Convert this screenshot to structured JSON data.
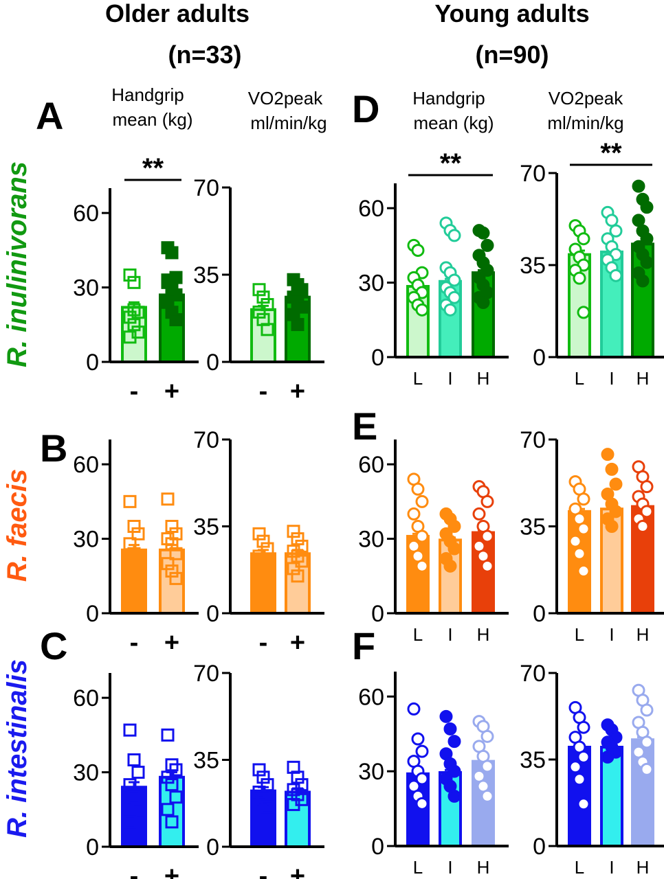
{
  "headers": {
    "older": {
      "line1": "Older adults",
      "line2": "(n=33)"
    },
    "young": {
      "line1": "Young adults",
      "line2": "(n=90)"
    }
  },
  "column_labels": {
    "handgrip": {
      "line1": "Handgrip",
      "line2": "mean (kg)"
    },
    "vo2": {
      "line1": "VO2peak",
      "line2": "ml/min/kg"
    }
  },
  "row_labels": [
    {
      "text": "R. inulinivorans",
      "color": "#119911"
    },
    {
      "text": "R. faecis",
      "color": "#ff5a10"
    },
    {
      "text": "R. intestinalis",
      "color": "#1a1aee"
    }
  ],
  "panel_letters": [
    "A",
    "B",
    "C",
    "D",
    "E",
    "F"
  ],
  "significance_label": "**",
  "chart_data": [
    {
      "id": "A-handgrip",
      "panel": "A",
      "type": "bar",
      "ylim": [
        0,
        70
      ],
      "yticks": [
        0,
        30,
        60
      ],
      "categories": [
        "-",
        "+"
      ],
      "values": [
        22,
        27
      ],
      "sem": [
        2,
        1.5
      ],
      "significant": true,
      "markers": [
        "open-square",
        "filled-square"
      ],
      "fills": [
        "#ccf7cc",
        "#00aa00"
      ],
      "strokes": [
        "#11bb11",
        "#006b00"
      ],
      "points": [
        [
          35,
          32,
          20,
          18,
          15,
          12,
          10,
          21
        ],
        [
          46,
          44,
          34,
          32,
          30,
          27,
          24,
          20,
          17,
          33
        ]
      ]
    },
    {
      "id": "A-vo2",
      "panel": "A",
      "type": "bar",
      "ylim": [
        0,
        70
      ],
      "yticks": [
        0,
        35,
        70
      ],
      "categories": [
        "-",
        "+"
      ],
      "values": [
        21,
        26
      ],
      "sem": [
        1.5,
        1.5
      ],
      "significant": false,
      "markers": [
        "open-square",
        "filled-square"
      ],
      "fills": [
        "#ccf7cc",
        "#00aa00"
      ],
      "strokes": [
        "#11bb11",
        "#006b00"
      ],
      "points": [
        [
          29,
          26,
          23,
          20,
          17,
          13
        ],
        [
          33,
          31,
          29,
          26,
          24,
          22,
          19,
          15
        ]
      ]
    },
    {
      "id": "B-handgrip",
      "panel": "B",
      "type": "bar",
      "ylim": [
        0,
        70
      ],
      "yticks": [
        0,
        30,
        60
      ],
      "categories": [
        "-",
        "+"
      ],
      "values": [
        25.5,
        25.5
      ],
      "sem": [
        2,
        2
      ],
      "significant": false,
      "markers": [
        "open-square",
        "open-square"
      ],
      "fills": [
        "#ff8c10",
        "#ffcc99"
      ],
      "strokes": [
        "#ff8c10",
        "#ff8c10"
      ],
      "points": [
        [
          45,
          35,
          32,
          28,
          24,
          20,
          15,
          10
        ],
        [
          46,
          35,
          32,
          30,
          28,
          24,
          20,
          17,
          14
        ]
      ]
    },
    {
      "id": "B-vo2",
      "panel": "B",
      "type": "bar",
      "ylim": [
        0,
        70
      ],
      "yticks": [
        0,
        35,
        70
      ],
      "categories": [
        "-",
        "+"
      ],
      "values": [
        24,
        24
      ],
      "sem": [
        1.5,
        1.5
      ],
      "significant": false,
      "markers": [
        "open-square",
        "open-square"
      ],
      "fills": [
        "#ff8c10",
        "#ffcc99"
      ],
      "strokes": [
        "#ff8c10",
        "#ff8c10"
      ],
      "points": [
        [
          32,
          29,
          26,
          23,
          20,
          17
        ],
        [
          33,
          30,
          27,
          25,
          23,
          21,
          18,
          15
        ]
      ]
    },
    {
      "id": "C-handgrip",
      "panel": "C",
      "type": "bar",
      "ylim": [
        0,
        70
      ],
      "yticks": [
        0,
        30,
        60
      ],
      "categories": [
        "-",
        "+"
      ],
      "values": [
        24,
        28
      ],
      "sem": [
        2,
        2
      ],
      "significant": false,
      "markers": [
        "open-square",
        "open-square"
      ],
      "fills": [
        "#1111ee",
        "#33eeee"
      ],
      "strokes": [
        "#1111ee",
        "#1111ee"
      ],
      "points": [
        [
          47,
          35,
          30,
          25,
          20,
          15,
          10
        ],
        [
          45,
          33,
          31,
          28,
          25,
          20,
          15,
          10
        ]
      ]
    },
    {
      "id": "C-vo2",
      "panel": "C",
      "type": "bar",
      "ylim": [
        0,
        70
      ],
      "yticks": [
        0,
        35,
        70
      ],
      "categories": [
        "-",
        "+"
      ],
      "values": [
        22.5,
        22
      ],
      "sem": [
        1.5,
        1.5
      ],
      "significant": false,
      "markers": [
        "open-square",
        "open-square"
      ],
      "fills": [
        "#1111ee",
        "#33eeee"
      ],
      "strokes": [
        "#1111ee",
        "#1111ee"
      ],
      "points": [
        [
          31,
          28,
          25,
          22,
          19,
          16
        ],
        [
          32,
          28,
          25,
          23,
          21,
          19,
          17
        ]
      ]
    },
    {
      "id": "D-handgrip",
      "panel": "D",
      "type": "bar",
      "ylim": [
        0,
        70
      ],
      "yticks": [
        0,
        30,
        60
      ],
      "categories": [
        "L",
        "I",
        "H"
      ],
      "values": [
        28.5,
        30.5,
        34
      ],
      "sem": [
        1.5,
        1,
        1
      ],
      "significant": true,
      "markers": [
        "open-circle",
        "open-circle",
        "filled-circle"
      ],
      "fills": [
        "#ccf7cc",
        "#44eebb",
        "#00aa00"
      ],
      "strokes": [
        "#11bb11",
        "#22cc99",
        "#006b00"
      ],
      "points": [
        [
          45,
          43,
          34,
          32,
          29,
          26,
          24,
          21,
          19
        ],
        [
          54,
          51,
          49,
          36,
          34,
          31,
          28,
          26,
          24,
          21,
          19
        ],
        [
          51,
          50,
          45,
          41,
          38,
          35,
          32,
          29,
          26,
          24,
          22
        ]
      ]
    },
    {
      "id": "D-vo2",
      "panel": "D",
      "type": "bar",
      "ylim": [
        0,
        70
      ],
      "yticks": [
        0,
        35,
        70
      ],
      "categories": [
        "L",
        "I",
        "H"
      ],
      "values": [
        39,
        40,
        43
      ],
      "sem": [
        1.5,
        1,
        1
      ],
      "significant": true,
      "markers": [
        "open-circle",
        "open-circle",
        "filled-circle"
      ],
      "fills": [
        "#ccf7cc",
        "#44eebb",
        "#00aa00"
      ],
      "strokes": [
        "#11bb11",
        "#22cc99",
        "#006b00"
      ],
      "points": [
        [
          50,
          48,
          45,
          41,
          38,
          35,
          33,
          30,
          17
        ],
        [
          55,
          52,
          48,
          45,
          42,
          39,
          37,
          34,
          31
        ],
        [
          65,
          60,
          57,
          52,
          48,
          45,
          42,
          39,
          36,
          32,
          29
        ]
      ]
    },
    {
      "id": "E-handgrip",
      "panel": "E",
      "type": "bar",
      "ylim": [
        0,
        70
      ],
      "yticks": [
        0,
        30,
        60
      ],
      "categories": [
        "L",
        "I",
        "H"
      ],
      "values": [
        31,
        29.5,
        32.5
      ],
      "sem": [
        1,
        1,
        1
      ],
      "significant": false,
      "markers": [
        "open-circle",
        "filled-circle",
        "open-circle"
      ],
      "fills": [
        "#ff8c10",
        "#ffcc99",
        "#e8400a"
      ],
      "strokes": [
        "#ff8c10",
        "#ff8c10",
        "#e8400a"
      ],
      "points": [
        [
          54,
          50,
          45,
          40,
          35,
          31,
          27,
          23,
          19
        ],
        [
          40,
          38,
          35,
          32,
          29,
          26,
          22,
          19
        ],
        [
          51,
          49,
          45,
          40,
          35,
          31,
          27,
          23,
          19
        ]
      ]
    },
    {
      "id": "E-vo2",
      "panel": "E",
      "type": "bar",
      "ylim": [
        0,
        70
      ],
      "yticks": [
        0,
        35,
        70
      ],
      "categories": [
        "L",
        "I",
        "H"
      ],
      "values": [
        41,
        42,
        43
      ],
      "sem": [
        1,
        1,
        1
      ],
      "significant": false,
      "markers": [
        "open-circle",
        "filled-circle",
        "open-circle"
      ],
      "fills": [
        "#ff8c10",
        "#ffcc99",
        "#e8400a"
      ],
      "strokes": [
        "#ff8c10",
        "#ff8c10",
        "#e8400a"
      ],
      "points": [
        [
          53,
          50,
          46,
          42,
          38,
          34,
          29,
          24,
          17
        ],
        [
          64,
          58,
          52,
          48,
          44,
          41,
          38,
          35
        ],
        [
          59,
          55,
          51,
          47,
          44,
          41,
          38,
          35
        ]
      ]
    },
    {
      "id": "F-handgrip",
      "panel": "F",
      "type": "bar",
      "ylim": [
        0,
        70
      ],
      "yticks": [
        0,
        30,
        60
      ],
      "categories": [
        "L",
        "I",
        "H"
      ],
      "values": [
        29,
        29.5,
        34
      ],
      "sem": [
        1,
        1,
        1
      ],
      "significant": false,
      "markers": [
        "open-circle",
        "filled-circle",
        "open-circle"
      ],
      "fills": [
        "#1111ee",
        "#33eeee",
        "#99aaee"
      ],
      "strokes": [
        "#1111ee",
        "#1111ee",
        "#99aaee"
      ],
      "points": [
        [
          55,
          43,
          38,
          34,
          30,
          27,
          24,
          20,
          17
        ],
        [
          52,
          47,
          42,
          37,
          33,
          30,
          27,
          24,
          20
        ],
        [
          50,
          48,
          44,
          40,
          36,
          32,
          28,
          24,
          20
        ]
      ]
    },
    {
      "id": "F-vo2",
      "panel": "F",
      "type": "bar",
      "ylim": [
        0,
        70
      ],
      "yticks": [
        0,
        35,
        70
      ],
      "categories": [
        "L",
        "I",
        "H"
      ],
      "values": [
        40,
        40,
        43
      ],
      "sem": [
        1,
        1,
        1
      ],
      "significant": false,
      "markers": [
        "open-circle",
        "filled-circle",
        "open-circle"
      ],
      "fills": [
        "#1111ee",
        "#33eeee",
        "#99aaee"
      ],
      "strokes": [
        "#1111ee",
        "#1111ee",
        "#99aaee"
      ],
      "points": [
        [
          56,
          52,
          48,
          44,
          40,
          36,
          32,
          27,
          17
        ],
        [
          49,
          47,
          44,
          42,
          40,
          38,
          36
        ],
        [
          63,
          59,
          55,
          50,
          46,
          42,
          38,
          34,
          31
        ]
      ]
    }
  ]
}
